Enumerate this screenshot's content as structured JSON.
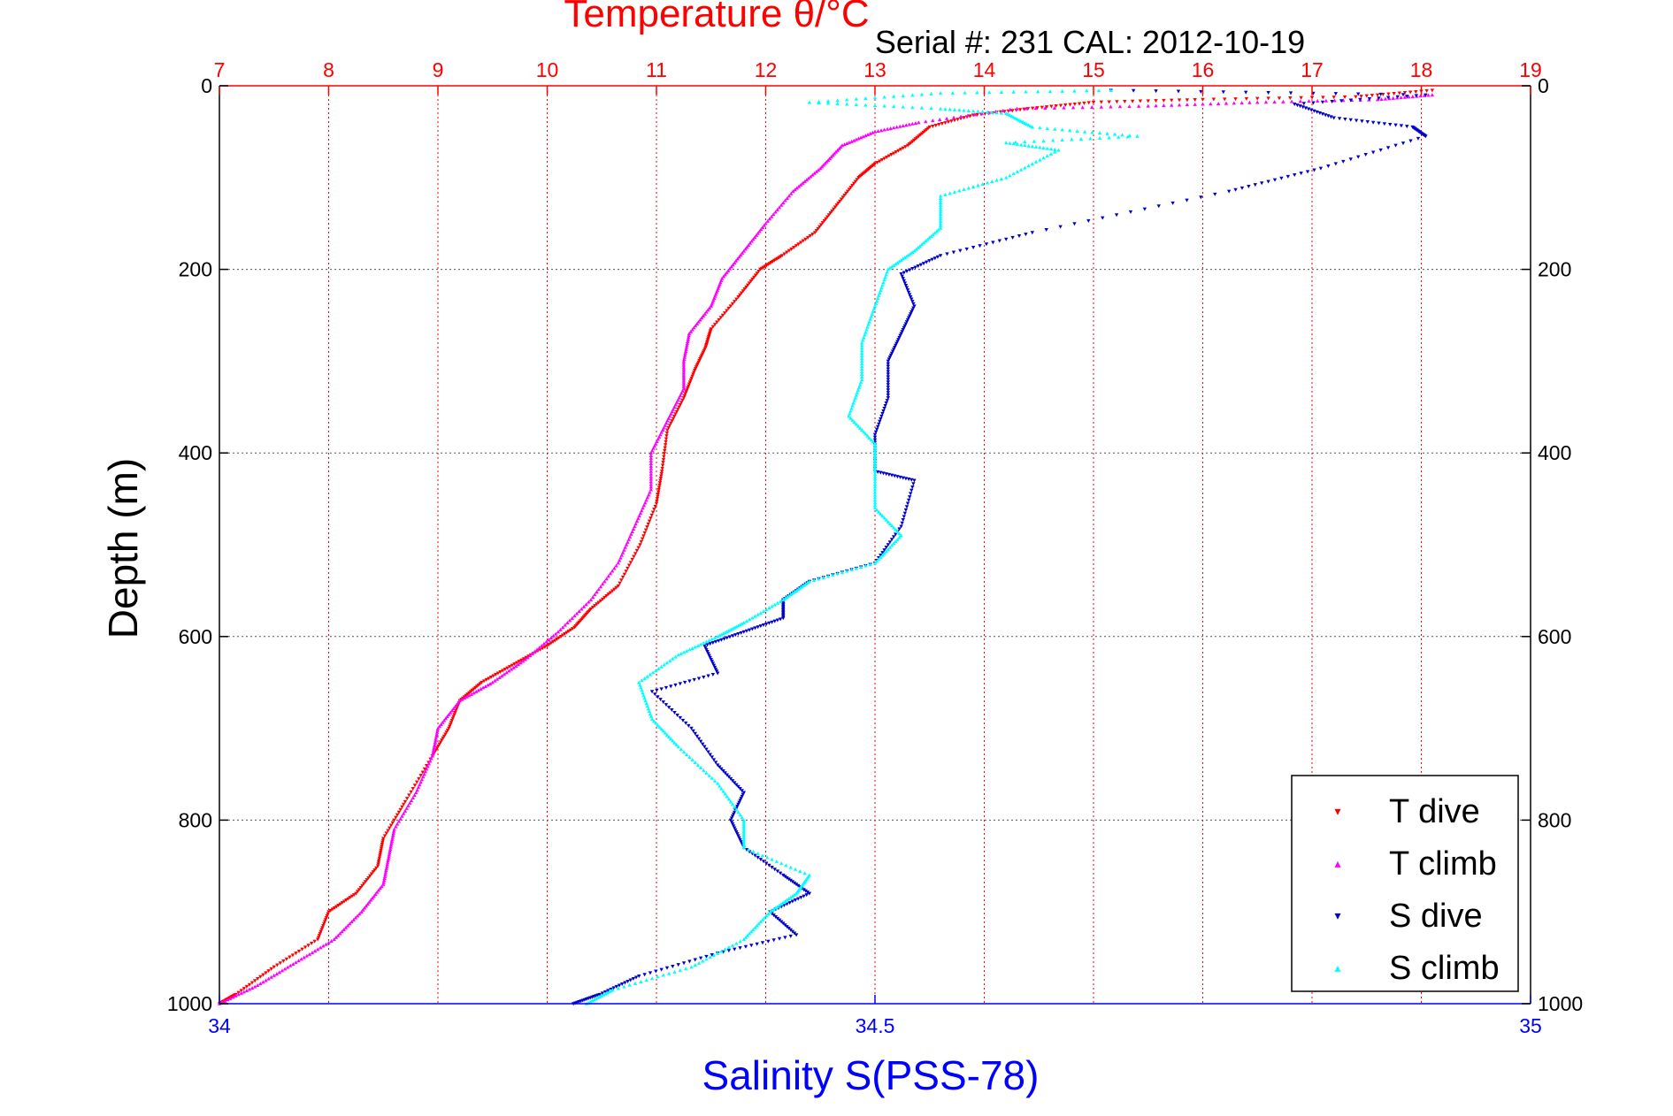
{
  "chart_data": {
    "type": "scatter",
    "title": "Temperature θ/°C",
    "subtitle": "Serial #: 231  CAL: 2012-10-19",
    "xlabel": "Salinity S(PSS-78)",
    "ylabel": "Depth (m)",
    "top_axis": {
      "label": "Temperature θ/°C",
      "range": [
        7,
        19
      ],
      "ticks": [
        "7",
        "8",
        "9",
        "10",
        "11",
        "12",
        "13",
        "14",
        "15",
        "16",
        "17",
        "18",
        "19"
      ],
      "color": "#ff0000"
    },
    "bottom_axis": {
      "label": "Salinity S(PSS-78)",
      "range": [
        34,
        35
      ],
      "ticks": [
        "34",
        "34.5",
        "35"
      ],
      "color": "#0000ff"
    },
    "y_axis": {
      "range": [
        0,
        1000
      ],
      "reversed": true,
      "ticks": [
        "0",
        "200",
        "400",
        "600",
        "800",
        "1000"
      ]
    },
    "grid": "dotted; red vertical lines at temperature ticks, gray horizontal lines at depth ticks",
    "legend": {
      "placement": "bottom-right",
      "entries": [
        {
          "label": "T dive",
          "color": "#ff0000",
          "marker": "▾"
        },
        {
          "label": "T climb",
          "color": "#ff00ff",
          "marker": "▴"
        },
        {
          "label": "S dive",
          "color": "#0000cc",
          "marker": "▾"
        },
        {
          "label": "S climb",
          "color": "#00ffff",
          "marker": "▴"
        }
      ]
    },
    "series": [
      {
        "name": "T dive",
        "axis": "temperature",
        "color": "#ff0000",
        "marker": "down-triangle",
        "points": [
          [
            18.1,
            5
          ],
          [
            17.4,
            12
          ],
          [
            16.0,
            15
          ],
          [
            15.0,
            18
          ],
          [
            14.4,
            25
          ],
          [
            13.9,
            32
          ],
          [
            13.5,
            45
          ],
          [
            13.3,
            65
          ],
          [
            13.0,
            85
          ],
          [
            12.85,
            100
          ],
          [
            12.65,
            130
          ],
          [
            12.45,
            160
          ],
          [
            12.15,
            185
          ],
          [
            11.95,
            200
          ],
          [
            11.75,
            230
          ],
          [
            11.5,
            265
          ],
          [
            11.45,
            285
          ],
          [
            11.35,
            310
          ],
          [
            11.25,
            340
          ],
          [
            11.1,
            375
          ],
          [
            11.05,
            420
          ],
          [
            11.0,
            455
          ],
          [
            10.85,
            500
          ],
          [
            10.65,
            545
          ],
          [
            10.4,
            570
          ],
          [
            10.25,
            590
          ],
          [
            10.0,
            610
          ],
          [
            9.7,
            630
          ],
          [
            9.4,
            650
          ],
          [
            9.2,
            670
          ],
          [
            9.1,
            700
          ],
          [
            8.95,
            730
          ],
          [
            8.7,
            780
          ],
          [
            8.5,
            820
          ],
          [
            8.45,
            850
          ],
          [
            8.25,
            880
          ],
          [
            8.0,
            900
          ],
          [
            7.9,
            930
          ],
          [
            7.5,
            960
          ],
          [
            7.15,
            990
          ],
          [
            7.0,
            1000
          ]
        ]
      },
      {
        "name": "T climb",
        "axis": "temperature",
        "color": "#ff00ff",
        "marker": "up-triangle",
        "points": [
          [
            18.1,
            10
          ],
          [
            17.6,
            15
          ],
          [
            16.5,
            18
          ],
          [
            15.5,
            22
          ],
          [
            14.3,
            25
          ],
          [
            13.4,
            40
          ],
          [
            13.0,
            50
          ],
          [
            12.7,
            65
          ],
          [
            12.5,
            90
          ],
          [
            12.25,
            115
          ],
          [
            12.0,
            150
          ],
          [
            11.8,
            180
          ],
          [
            11.6,
            210
          ],
          [
            11.5,
            240
          ],
          [
            11.3,
            270
          ],
          [
            11.25,
            300
          ],
          [
            11.25,
            330
          ],
          [
            11.1,
            365
          ],
          [
            10.95,
            400
          ],
          [
            10.95,
            440
          ],
          [
            10.8,
            480
          ],
          [
            10.65,
            520
          ],
          [
            10.4,
            560
          ],
          [
            10.1,
            595
          ],
          [
            9.8,
            625
          ],
          [
            9.5,
            650
          ],
          [
            9.2,
            670
          ],
          [
            9.0,
            700
          ],
          [
            8.95,
            730
          ],
          [
            8.8,
            770
          ],
          [
            8.6,
            810
          ],
          [
            8.55,
            840
          ],
          [
            8.5,
            870
          ],
          [
            8.3,
            900
          ],
          [
            8.05,
            930
          ],
          [
            7.7,
            955
          ],
          [
            7.35,
            980
          ],
          [
            7.0,
            1000
          ]
        ]
      },
      {
        "name": "S dive",
        "axis": "salinity",
        "color": "#0000cc",
        "marker": "down-triangle",
        "points": [
          [
            34.68,
            5
          ],
          [
            34.92,
            10
          ],
          [
            34.82,
            20
          ],
          [
            34.85,
            35
          ],
          [
            34.91,
            45
          ],
          [
            34.92,
            55
          ],
          [
            34.84,
            90
          ],
          [
            34.77,
            115
          ],
          [
            34.62,
            160
          ],
          [
            34.55,
            185
          ],
          [
            34.52,
            205
          ],
          [
            34.53,
            240
          ],
          [
            34.52,
            270
          ],
          [
            34.51,
            300
          ],
          [
            34.51,
            340
          ],
          [
            34.5,
            380
          ],
          [
            34.5,
            420
          ],
          [
            34.53,
            430
          ],
          [
            34.52,
            480
          ],
          [
            34.5,
            520
          ],
          [
            34.45,
            540
          ],
          [
            34.43,
            560
          ],
          [
            34.43,
            580
          ],
          [
            34.4,
            595
          ],
          [
            34.37,
            610
          ],
          [
            34.38,
            640
          ],
          [
            34.33,
            660
          ],
          [
            34.36,
            700
          ],
          [
            34.38,
            740
          ],
          [
            34.4,
            770
          ],
          [
            34.39,
            800
          ],
          [
            34.4,
            830
          ],
          [
            34.43,
            860
          ],
          [
            34.45,
            880
          ],
          [
            34.42,
            900
          ],
          [
            34.44,
            925
          ],
          [
            34.38,
            945
          ],
          [
            34.32,
            970
          ],
          [
            34.29,
            990
          ],
          [
            34.27,
            1000
          ]
        ]
      },
      {
        "name": "S climb",
        "axis": "salinity",
        "color": "#00ffff",
        "marker": "up-triangle",
        "points": [
          [
            34.68,
            5
          ],
          [
            34.55,
            8
          ],
          [
            34.45,
            18
          ],
          [
            34.55,
            25
          ],
          [
            34.6,
            30
          ],
          [
            34.62,
            45
          ],
          [
            34.7,
            55
          ],
          [
            34.6,
            62
          ],
          [
            34.64,
            70
          ],
          [
            34.6,
            100
          ],
          [
            34.55,
            120
          ],
          [
            34.55,
            155
          ],
          [
            34.53,
            180
          ],
          [
            34.51,
            200
          ],
          [
            34.5,
            240
          ],
          [
            34.49,
            280
          ],
          [
            34.49,
            320
          ],
          [
            34.48,
            360
          ],
          [
            34.5,
            390
          ],
          [
            34.5,
            420
          ],
          [
            34.5,
            460
          ],
          [
            34.52,
            490
          ],
          [
            34.5,
            520
          ],
          [
            34.45,
            540
          ],
          [
            34.43,
            560
          ],
          [
            34.4,
            585
          ],
          [
            34.38,
            600
          ],
          [
            34.35,
            620
          ],
          [
            34.32,
            650
          ],
          [
            34.33,
            690
          ],
          [
            34.35,
            720
          ],
          [
            34.38,
            760
          ],
          [
            34.4,
            800
          ],
          [
            34.4,
            830
          ],
          [
            34.45,
            860
          ],
          [
            34.44,
            880
          ],
          [
            34.42,
            900
          ],
          [
            34.4,
            930
          ],
          [
            34.36,
            960
          ],
          [
            34.3,
            985
          ],
          [
            34.28,
            1000
          ]
        ]
      }
    ]
  }
}
